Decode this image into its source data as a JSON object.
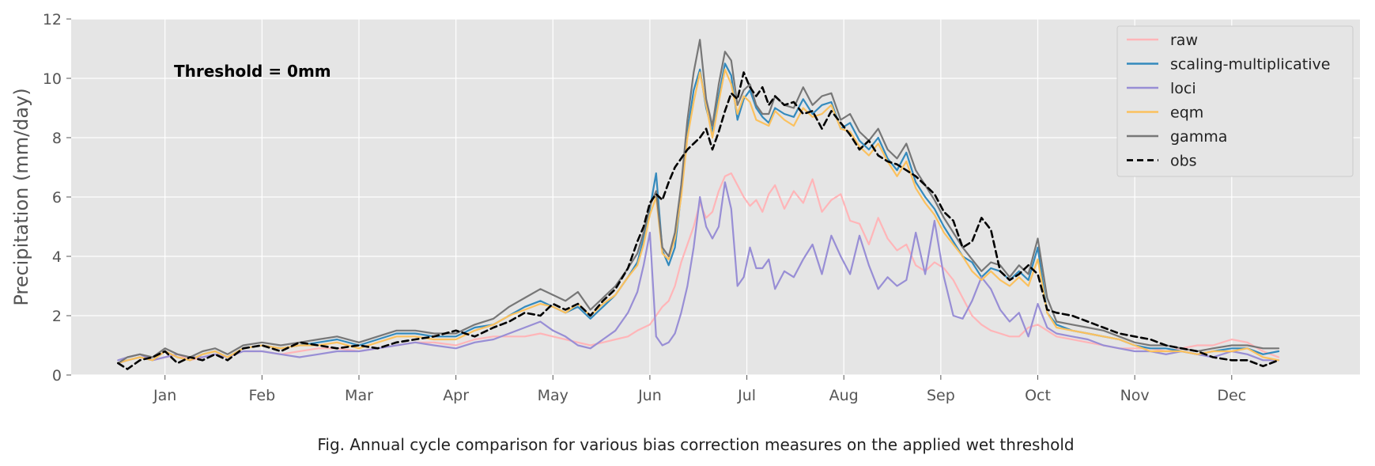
{
  "caption": "Fig. Annual cycle comparison for various bias correction measures on the applied wet threshold",
  "chart_data": {
    "type": "line",
    "title": "",
    "annotation": "Threshold = 0mm",
    "xlabel": "",
    "ylabel": "Precipitation (mm/day)",
    "ylim": [
      0,
      12
    ],
    "yticks": [
      0,
      2,
      4,
      6,
      8,
      10,
      12
    ],
    "xlim": [
      -30,
      382
    ],
    "xticks": [
      {
        "x": 0,
        "label": "Jan"
      },
      {
        "x": 31,
        "label": "Feb"
      },
      {
        "x": 62,
        "label": "Mar"
      },
      {
        "x": 93,
        "label": "Apr"
      },
      {
        "x": 124,
        "label": "May"
      },
      {
        "x": 155,
        "label": "Jun"
      },
      {
        "x": 186,
        "label": "Jul"
      },
      {
        "x": 217,
        "label": "Aug"
      },
      {
        "x": 248,
        "label": "Sep"
      },
      {
        "x": 279,
        "label": "Oct"
      },
      {
        "x": 310,
        "label": "Nov"
      },
      {
        "x": 341,
        "label": "Dec"
      }
    ],
    "grid": true,
    "background": "#e5e5e5",
    "legend_position": "top-right",
    "x": [
      -15,
      -12,
      -8,
      -4,
      0,
      4,
      8,
      12,
      16,
      20,
      25,
      31,
      37,
      43,
      49,
      55,
      62,
      68,
      74,
      80,
      86,
      93,
      99,
      105,
      110,
      115,
      120,
      124,
      128,
      132,
      136,
      140,
      144,
      148,
      151,
      153,
      155,
      157,
      159,
      161,
      163,
      165,
      167,
      169,
      171,
      173,
      175,
      177,
      179,
      181,
      183,
      185,
      187,
      189,
      191,
      193,
      195,
      198,
      201,
      204,
      207,
      210,
      213,
      216,
      219,
      222,
      225,
      228,
      231,
      234,
      237,
      240,
      243,
      246,
      249,
      252,
      255,
      258,
      261,
      264,
      267,
      270,
      273,
      276,
      279,
      282,
      285,
      290,
      295,
      300,
      305,
      310,
      315,
      320,
      325,
      330,
      335,
      341,
      346,
      351,
      356
    ],
    "series": [
      {
        "name": "raw",
        "color": "#ffb5b8",
        "dash": false,
        "values": [
          0.4,
          0.5,
          0.6,
          0.5,
          0.6,
          0.7,
          0.5,
          0.6,
          0.7,
          0.6,
          0.8,
          0.8,
          0.7,
          0.8,
          0.9,
          0.9,
          0.8,
          0.9,
          1.0,
          1.1,
          1.1,
          1.0,
          1.2,
          1.3,
          1.3,
          1.3,
          1.4,
          1.3,
          1.2,
          1.1,
          1.0,
          1.1,
          1.2,
          1.3,
          1.5,
          1.6,
          1.7,
          2.0,
          2.3,
          2.5,
          3.0,
          3.8,
          4.4,
          5.0,
          5.8,
          5.3,
          5.5,
          6.2,
          6.7,
          6.8,
          6.4,
          6.0,
          5.7,
          5.9,
          5.5,
          6.1,
          6.4,
          5.6,
          6.2,
          5.8,
          6.6,
          5.5,
          5.9,
          6.1,
          5.2,
          5.1,
          4.4,
          5.3,
          4.6,
          4.2,
          4.4,
          3.7,
          3.5,
          3.8,
          3.6,
          3.2,
          2.6,
          2.0,
          1.7,
          1.5,
          1.4,
          1.3,
          1.3,
          1.6,
          1.7,
          1.5,
          1.3,
          1.2,
          1.1,
          1.0,
          0.9,
          0.9,
          0.9,
          0.8,
          0.9,
          1.0,
          1.0,
          1.2,
          1.1,
          0.8,
          0.6
        ]
      },
      {
        "name": "scaling-multiplicative",
        "color": "#348abd",
        "dash": false,
        "values": [
          0.4,
          0.5,
          0.6,
          0.5,
          0.8,
          0.6,
          0.5,
          0.7,
          0.8,
          0.6,
          0.9,
          1.0,
          0.9,
          1.0,
          1.1,
          1.2,
          1.0,
          1.2,
          1.4,
          1.4,
          1.3,
          1.3,
          1.6,
          1.7,
          2.0,
          2.3,
          2.5,
          2.3,
          2.1,
          2.3,
          1.9,
          2.3,
          2.7,
          3.3,
          3.8,
          4.6,
          5.6,
          6.8,
          4.2,
          3.7,
          4.3,
          6.1,
          8.2,
          9.6,
          10.3,
          9.0,
          8.2,
          9.4,
          10.5,
          10.1,
          8.6,
          9.3,
          9.6,
          9.0,
          8.7,
          8.5,
          9.0,
          8.8,
          8.7,
          9.3,
          8.8,
          9.1,
          9.2,
          8.3,
          8.5,
          7.9,
          7.6,
          8.0,
          7.3,
          6.9,
          7.5,
          6.5,
          6.0,
          5.6,
          5.0,
          4.5,
          4.0,
          3.8,
          3.3,
          3.6,
          3.5,
          3.2,
          3.5,
          3.2,
          4.3,
          2.1,
          1.7,
          1.5,
          1.4,
          1.3,
          1.2,
          1.0,
          0.9,
          0.9,
          0.8,
          0.7,
          0.8,
          0.9,
          0.9,
          0.7,
          0.8
        ]
      },
      {
        "name": "loci",
        "color": "#988ed5",
        "dash": false,
        "values": [
          0.5,
          0.6,
          0.7,
          0.5,
          0.6,
          0.7,
          0.6,
          0.6,
          0.7,
          0.6,
          0.8,
          0.8,
          0.7,
          0.6,
          0.7,
          0.8,
          0.8,
          0.9,
          1.0,
          1.1,
          1.0,
          0.9,
          1.1,
          1.2,
          1.4,
          1.6,
          1.8,
          1.5,
          1.3,
          1.0,
          0.9,
          1.2,
          1.5,
          2.1,
          2.8,
          3.7,
          4.8,
          1.3,
          1.0,
          1.1,
          1.4,
          2.1,
          3.0,
          4.3,
          6.0,
          5.0,
          4.6,
          5.0,
          6.5,
          5.6,
          3.0,
          3.3,
          4.3,
          3.6,
          3.6,
          3.9,
          2.9,
          3.5,
          3.3,
          3.9,
          4.4,
          3.4,
          4.7,
          4.0,
          3.4,
          4.7,
          3.7,
          2.9,
          3.3,
          3.0,
          3.2,
          4.8,
          3.4,
          5.2,
          3.3,
          2.0,
          1.9,
          2.5,
          3.3,
          2.9,
          2.2,
          1.8,
          2.1,
          1.3,
          2.4,
          1.6,
          1.4,
          1.3,
          1.2,
          1.0,
          0.9,
          0.8,
          0.8,
          0.7,
          0.8,
          0.7,
          0.6,
          0.8,
          0.7,
          0.5,
          0.5
        ]
      },
      {
        "name": "eqm",
        "color": "#fbc15e",
        "dash": false,
        "values": [
          0.4,
          0.5,
          0.6,
          0.5,
          0.8,
          0.6,
          0.5,
          0.7,
          0.8,
          0.6,
          0.9,
          1.0,
          0.9,
          1.0,
          1.0,
          1.1,
          0.9,
          1.1,
          1.3,
          1.3,
          1.2,
          1.2,
          1.5,
          1.7,
          2.0,
          2.2,
          2.4,
          2.3,
          2.1,
          2.4,
          2.0,
          2.4,
          2.7,
          3.3,
          3.7,
          4.4,
          5.4,
          6.0,
          4.1,
          3.9,
          4.6,
          6.0,
          8.0,
          9.2,
          10.2,
          9.1,
          8.0,
          9.2,
          10.3,
          9.8,
          8.8,
          9.4,
          9.2,
          8.6,
          8.5,
          8.4,
          8.9,
          8.6,
          8.4,
          9.0,
          8.7,
          8.8,
          9.1,
          8.3,
          8.2,
          7.7,
          7.4,
          7.8,
          7.2,
          6.7,
          7.2,
          6.3,
          5.8,
          5.4,
          4.8,
          4.4,
          4.0,
          3.5,
          3.2,
          3.5,
          3.2,
          3.0,
          3.3,
          3.0,
          3.9,
          2.1,
          1.6,
          1.5,
          1.4,
          1.3,
          1.2,
          1.0,
          0.8,
          0.8,
          0.8,
          0.7,
          0.8,
          0.8,
          0.9,
          0.6,
          0.5
        ]
      },
      {
        "name": "gamma",
        "color": "#777777",
        "dash": false,
        "values": [
          0.4,
          0.6,
          0.7,
          0.6,
          0.9,
          0.7,
          0.6,
          0.8,
          0.9,
          0.7,
          1.0,
          1.1,
          1.0,
          1.1,
          1.2,
          1.3,
          1.1,
          1.3,
          1.5,
          1.5,
          1.4,
          1.4,
          1.7,
          1.9,
          2.3,
          2.6,
          2.9,
          2.7,
          2.5,
          2.8,
          2.2,
          2.6,
          3.0,
          3.6,
          4.1,
          4.8,
          5.7,
          6.2,
          4.3,
          4.0,
          4.8,
          6.4,
          8.6,
          10.2,
          11.3,
          9.3,
          8.4,
          9.8,
          10.9,
          10.6,
          9.1,
          9.6,
          9.8,
          9.1,
          8.8,
          8.8,
          9.4,
          9.1,
          9.0,
          9.7,
          9.1,
          9.4,
          9.5,
          8.6,
          8.8,
          8.2,
          7.9,
          8.3,
          7.6,
          7.3,
          7.8,
          6.9,
          6.4,
          5.9,
          5.3,
          4.8,
          4.3,
          3.9,
          3.5,
          3.8,
          3.7,
          3.3,
          3.7,
          3.4,
          4.6,
          2.6,
          1.8,
          1.7,
          1.6,
          1.5,
          1.3,
          1.1,
          1.0,
          1.0,
          0.9,
          0.8,
          0.9,
          1.0,
          1.0,
          0.9,
          0.9
        ]
      },
      {
        "name": "obs",
        "color": "#000000",
        "dash": true,
        "values": [
          0.4,
          0.2,
          0.5,
          0.6,
          0.8,
          0.4,
          0.6,
          0.5,
          0.7,
          0.5,
          0.9,
          1.0,
          0.8,
          1.1,
          1.0,
          0.9,
          1.0,
          0.9,
          1.1,
          1.2,
          1.3,
          1.5,
          1.3,
          1.6,
          1.8,
          2.1,
          2.0,
          2.4,
          2.2,
          2.4,
          2.0,
          2.5,
          2.9,
          3.6,
          4.5,
          5.0,
          5.8,
          6.1,
          5.9,
          6.5,
          7.0,
          7.3,
          7.6,
          7.8,
          8.0,
          8.3,
          7.6,
          8.2,
          8.9,
          9.5,
          9.3,
          10.2,
          9.7,
          9.4,
          9.7,
          9.1,
          9.4,
          9.1,
          9.2,
          8.8,
          8.9,
          8.3,
          8.9,
          8.5,
          8.1,
          7.6,
          7.9,
          7.4,
          7.2,
          7.1,
          6.9,
          6.7,
          6.4,
          6.1,
          5.5,
          5.2,
          4.3,
          4.5,
          5.3,
          4.9,
          3.5,
          3.2,
          3.4,
          3.7,
          3.4,
          2.2,
          2.1,
          2.0,
          1.8,
          1.6,
          1.4,
          1.3,
          1.2,
          1.0,
          0.9,
          0.8,
          0.6,
          0.5,
          0.5,
          0.3,
          0.5
        ]
      }
    ]
  }
}
